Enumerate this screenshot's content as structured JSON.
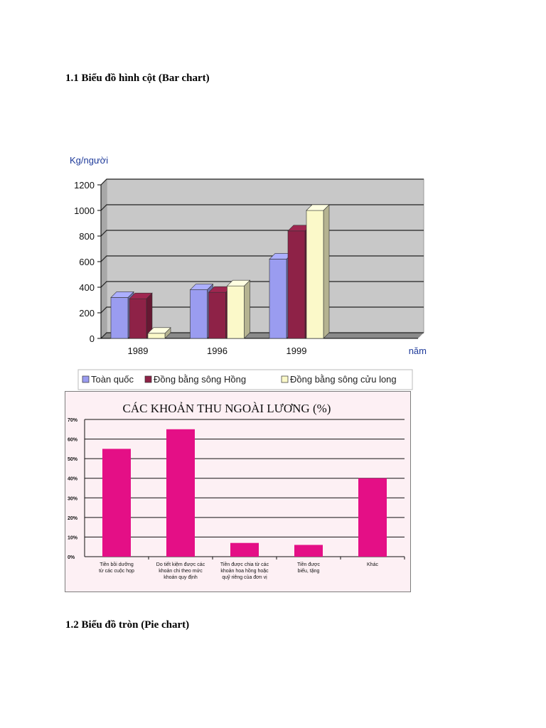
{
  "document": {
    "heading_1": "1.1 Biểu đồ hình cột (Bar chart)",
    "heading_2": "1.2 Biểu đồ tròn (Pie chart)"
  },
  "chart_data": [
    {
      "type": "bar",
      "style": "3d-clustered",
      "title": "",
      "ylabel": "Kg/người",
      "xlabel": "năm",
      "categories": [
        "1989",
        "1996",
        "1999"
      ],
      "ylim": [
        0,
        1200
      ],
      "yticks": [
        0,
        200,
        400,
        600,
        800,
        1000,
        1200
      ],
      "grid": true,
      "legend": "bottom",
      "series": [
        {
          "name": "Toàn quốc",
          "values": [
            320,
            380,
            620
          ],
          "color": "#9a9cf0"
        },
        {
          "name": "Đồng bằng sông Hồng",
          "values": [
            310,
            360,
            840
          ],
          "color": "#8e2247"
        },
        {
          "name": "Đồng bằng sông cửu long",
          "values": [
            40,
            410,
            1000
          ],
          "color": "#fbf9c9"
        }
      ]
    },
    {
      "type": "bar",
      "title": "CÁC KHOẢN THU NGOÀI LƯƠNG (%)",
      "categories": [
        [
          "Tiền bồi dưỡng",
          "từ các cuộc họp"
        ],
        [
          "Do tiết kiệm được các",
          "khoản chi theo mức",
          "khoán quy định"
        ],
        [
          "Tiền được chia từ các",
          "khoản hoa hồng hoặc",
          "quỹ riêng của đơn vị"
        ],
        [
          "Tiền được",
          "biếu, tặng"
        ],
        [
          "Khác"
        ]
      ],
      "values": [
        55,
        65,
        7,
        6,
        40
      ],
      "ylim": [
        0,
        70
      ],
      "yticks": [
        "0%",
        "10%",
        "20%",
        "30%",
        "40%",
        "50%",
        "60%",
        "70%"
      ],
      "grid": true,
      "color": "#e40f86",
      "background": "#fdf0f4"
    }
  ]
}
